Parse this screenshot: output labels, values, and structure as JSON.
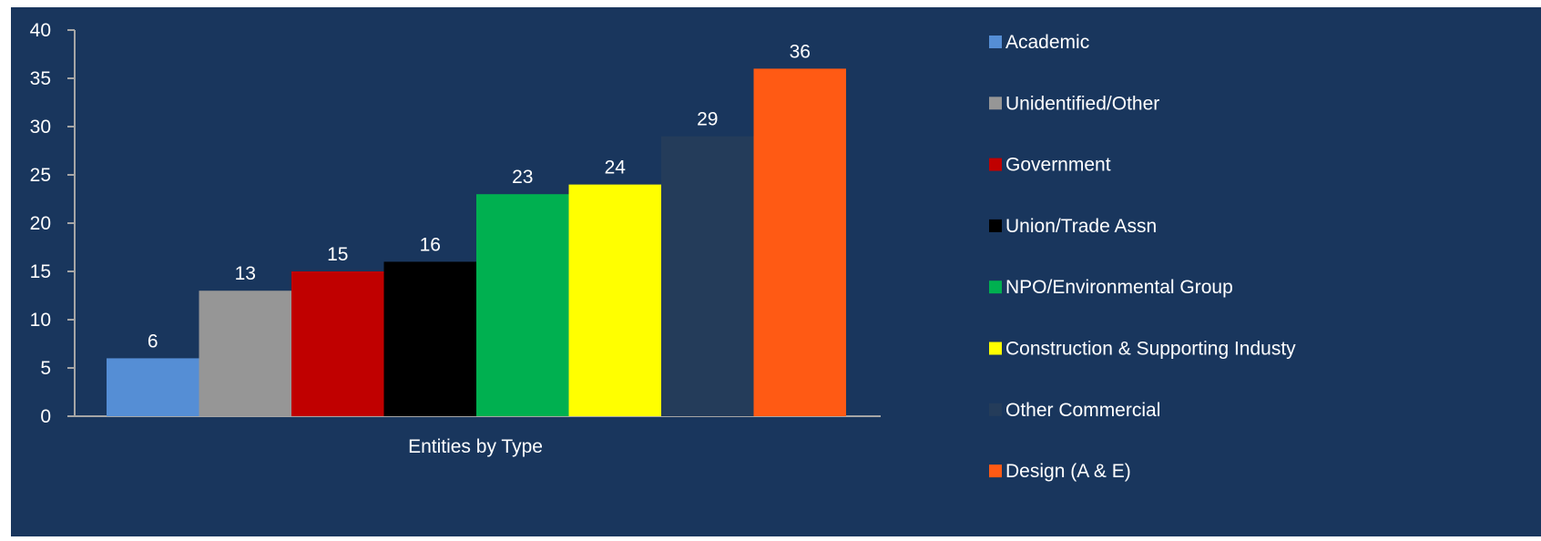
{
  "chart_data": {
    "type": "bar",
    "title": "",
    "xlabel": "Entities by Type",
    "ylabel": "",
    "ylim": [
      0,
      40
    ],
    "yticks": [
      0,
      5,
      10,
      15,
      20,
      25,
      30,
      35,
      40
    ],
    "grid": false,
    "legend_position": "right",
    "categories": [
      "Academic",
      "Unidentified/Other",
      "Government",
      "Union/Trade Assn",
      "NPO/Environmental Group",
      "Construction & Supporting Industy",
      "Other Commercial",
      "Design (A & E)"
    ],
    "values": [
      6,
      13,
      15,
      16,
      23,
      24,
      29,
      36
    ],
    "colors": [
      "#558ed5",
      "#969696",
      "#c00000",
      "#000000",
      "#00b050",
      "#ffff00",
      "#243c5a",
      "#ff5a14"
    ]
  },
  "theme": {
    "background": "#19365d",
    "axis_color": "#a6a6a6",
    "text_color": "#ffffff"
  }
}
